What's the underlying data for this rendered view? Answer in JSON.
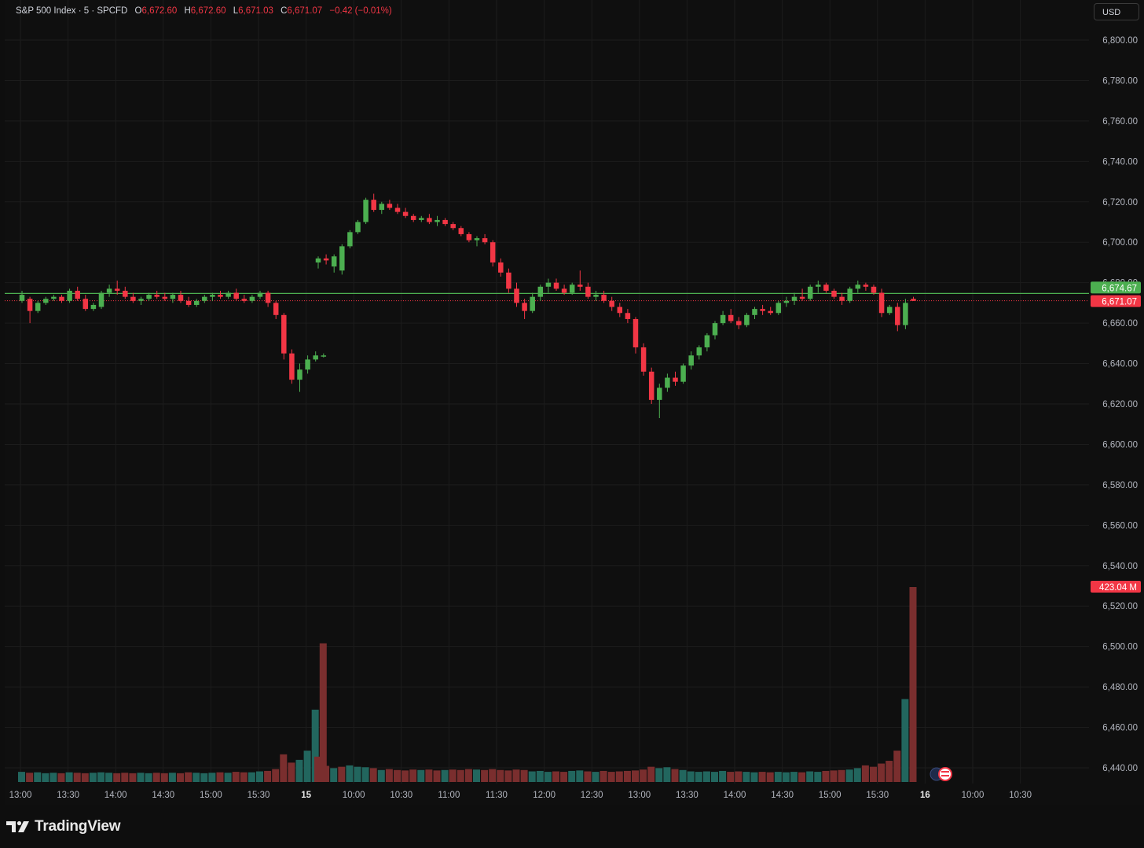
{
  "legend": {
    "symbol": "S&P 500 Index · 5 · SPCFD",
    "open_key": "O",
    "open": "6,672.60",
    "high_key": "H",
    "high": "6,672.60",
    "low_key": "L",
    "low": "6,671.03",
    "close_key": "C",
    "close": "6,671.07",
    "change": "−0.42 (−0.01%)"
  },
  "currency_button": "USD",
  "brand": "TradingView",
  "price_labels": {
    "current_green": "6,674.67",
    "last_red": "6,671.07",
    "volume": "423.04 M"
  },
  "colors": {
    "up": "#4caf50",
    "down": "#f23645",
    "vol_up": "#22665e",
    "vol_down": "#7a2e2e",
    "background": "#0f0f0f",
    "grid": "#1c1c1c"
  },
  "chart_data": {
    "type": "candlestick",
    "interval": "5",
    "y_axis": {
      "ticks": [
        "6,800.00",
        "6,780.00",
        "6,760.00",
        "6,740.00",
        "6,720.00",
        "6,700.00",
        "6,680.00",
        "6,660.00",
        "6,640.00",
        "6,620.00",
        "6,600.00",
        "6,580.00",
        "6,560.00",
        "6,540.00",
        "6,520.00",
        "6,500.00",
        "6,480.00",
        "6,460.00",
        "6,440.00"
      ],
      "range": [
        6436,
        6803
      ]
    },
    "x_axis": {
      "labels": [
        "13:00",
        "13:30",
        "14:00",
        "14:30",
        "15:00",
        "15:30",
        "15",
        "10:00",
        "10:30",
        "11:00",
        "11:30",
        "12:00",
        "12:30",
        "13:00",
        "13:30",
        "14:00",
        "14:30",
        "15:00",
        "15:30",
        "16",
        "10:00",
        "10:30"
      ],
      "bold": [
        "15",
        "16"
      ]
    },
    "reference_lines": [
      6674.67,
      6671.07
    ],
    "candles": [
      [
        6671,
        6676,
        6670,
        6674
      ],
      [
        6672,
        6673,
        6660,
        6666
      ],
      [
        6666,
        6671,
        6665,
        6670
      ],
      [
        6670,
        6673,
        6669,
        6672
      ],
      [
        6672,
        6674,
        6671,
        6673
      ],
      [
        6673,
        6674,
        6670,
        6671
      ],
      [
        6671,
        6677,
        6670,
        6676
      ],
      [
        6676,
        6678,
        6671,
        6672
      ],
      [
        6672,
        6674,
        6666,
        6667
      ],
      [
        6667,
        6670,
        6666,
        6669
      ],
      [
        6668,
        6676,
        6667,
        6675
      ],
      [
        6675,
        6679,
        6673,
        6677
      ],
      [
        6677,
        6681,
        6674,
        6676
      ],
      [
        6676,
        6678,
        6672,
        6673
      ],
      [
        6673,
        6675,
        6670,
        6671
      ],
      [
        6671,
        6673,
        6669,
        6672
      ],
      [
        6672,
        6675,
        6671,
        6674
      ],
      [
        6674,
        6676,
        6672,
        6673
      ],
      [
        6673,
        6675,
        6671,
        6672
      ],
      [
        6672,
        6675,
        6670,
        6674
      ],
      [
        6674,
        6676,
        6670,
        6671
      ],
      [
        6671,
        6673,
        6668,
        6669
      ],
      [
        6669,
        6672,
        6668,
        6671
      ],
      [
        6671,
        6674,
        6670,
        6673
      ],
      [
        6673,
        6675,
        6671,
        6674
      ],
      [
        6674,
        6676,
        6672,
        6673
      ],
      [
        6673,
        6676,
        6672,
        6675
      ],
      [
        6675,
        6677,
        6671,
        6672
      ],
      [
        6672,
        6674,
        6670,
        6671
      ],
      [
        6671,
        6674,
        6670,
        6673
      ],
      [
        6673,
        6676,
        6672,
        6675
      ],
      [
        6675,
        6676,
        6668,
        6670
      ],
      [
        6670,
        6671,
        6662,
        6664
      ],
      [
        6664,
        6665,
        6642,
        6645
      ],
      [
        6645,
        6647,
        6630,
        6632
      ],
      [
        6632,
        6640,
        6626,
        6637
      ],
      [
        6637,
        6644,
        6635,
        6642
      ],
      [
        6642,
        6646,
        6641,
        6644
      ],
      [
        6644,
        6645,
        6643,
        6644
      ],
      [
        6690,
        6693,
        6687,
        6692
      ],
      [
        6692,
        6694,
        6689,
        6691
      ],
      [
        6688,
        6694,
        6685,
        6693
      ],
      [
        6686,
        6699,
        6684,
        6698
      ],
      [
        6698,
        6706,
        6697,
        6705
      ],
      [
        6705,
        6711,
        6704,
        6710
      ],
      [
        6710,
        6722,
        6709,
        6721
      ],
      [
        6721,
        6724,
        6715,
        6716
      ],
      [
        6716,
        6720,
        6714,
        6719
      ],
      [
        6719,
        6721,
        6716,
        6717
      ],
      [
        6717,
        6719,
        6714,
        6715
      ],
      [
        6715,
        6717,
        6712,
        6713
      ],
      [
        6713,
        6714,
        6710,
        6711
      ],
      [
        6711,
        6713,
        6710,
        6712
      ],
      [
        6712,
        6714,
        6709,
        6710
      ],
      [
        6710,
        6713,
        6708,
        6711
      ],
      [
        6711,
        6712,
        6708,
        6709
      ],
      [
        6709,
        6710,
        6706,
        6707
      ],
      [
        6707,
        6708,
        6703,
        6704
      ],
      [
        6704,
        6705,
        6700,
        6701
      ],
      [
        6701,
        6703,
        6698,
        6702
      ],
      [
        6702,
        6704,
        6699,
        6700
      ],
      [
        6700,
        6701,
        6688,
        6690
      ],
      [
        6690,
        6692,
        6683,
        6685
      ],
      [
        6685,
        6687,
        6675,
        6677
      ],
      [
        6677,
        6680,
        6668,
        6670
      ],
      [
        6670,
        6672,
        6662,
        6666
      ],
      [
        6666,
        6675,
        6665,
        6673
      ],
      [
        6673,
        6679,
        6671,
        6678
      ],
      [
        6678,
        6682,
        6675,
        6680
      ],
      [
        6680,
        6682,
        6676,
        6677
      ],
      [
        6677,
        6679,
        6674,
        6675
      ],
      [
        6675,
        6680,
        6674,
        6679
      ],
      [
        6679,
        6686,
        6676,
        6678
      ],
      [
        6678,
        6680,
        6672,
        6673
      ],
      [
        6673,
        6676,
        6671,
        6674
      ],
      [
        6674,
        6676,
        6670,
        6671
      ],
      [
        6671,
        6673,
        6666,
        6668
      ],
      [
        6668,
        6670,
        6663,
        6665
      ],
      [
        6665,
        6667,
        6660,
        6662
      ],
      [
        6662,
        6663,
        6645,
        6648
      ],
      [
        6648,
        6650,
        6634,
        6636
      ],
      [
        6636,
        6638,
        6620,
        6622
      ],
      [
        6622,
        6630,
        6613,
        6628
      ],
      [
        6628,
        6635,
        6626,
        6633
      ],
      [
        6633,
        6636,
        6629,
        6631
      ],
      [
        6631,
        6640,
        6630,
        6639
      ],
      [
        6639,
        6646,
        6637,
        6644
      ],
      [
        6644,
        6649,
        6642,
        6648
      ],
      [
        6648,
        6655,
        6646,
        6654
      ],
      [
        6654,
        6661,
        6652,
        6660
      ],
      [
        6660,
        6666,
        6659,
        6664
      ],
      [
        6664,
        6667,
        6660,
        6661
      ],
      [
        6661,
        6663,
        6657,
        6659
      ],
      [
        6659,
        6665,
        6658,
        6664
      ],
      [
        6664,
        6668,
        6662,
        6667
      ],
      [
        6667,
        6669,
        6664,
        6666
      ],
      [
        6666,
        6668,
        6664,
        6665
      ],
      [
        6665,
        6671,
        6664,
        6670
      ],
      [
        6670,
        6673,
        6668,
        6671
      ],
      [
        6671,
        6675,
        6669,
        6673
      ],
      [
        6673,
        6677,
        6671,
        6672
      ],
      [
        6672,
        6679,
        6671,
        6678
      ],
      [
        6678,
        6681,
        6675,
        6679
      ],
      [
        6679,
        6680,
        6675,
        6676
      ],
      [
        6676,
        6677,
        6672,
        6673
      ],
      [
        6673,
        6675,
        6669,
        6671
      ],
      [
        6671,
        6678,
        6670,
        6677
      ],
      [
        6677,
        6681,
        6675,
        6679
      ],
      [
        6679,
        6680,
        6676,
        6678
      ],
      [
        6678,
        6679,
        6674,
        6675
      ],
      [
        6675,
        6677,
        6663,
        6665
      ],
      [
        6665,
        6669,
        6664,
        6668
      ],
      [
        6668,
        6670,
        6656,
        6659
      ],
      [
        6659,
        6672,
        6657,
        6670
      ],
      [
        6672,
        6673,
        6671,
        6671
      ]
    ],
    "volume": [
      {
        "v": 22,
        "up": true
      },
      {
        "v": 20,
        "up": false
      },
      {
        "v": 21,
        "up": true
      },
      {
        "v": 19,
        "up": true
      },
      {
        "v": 20,
        "up": true
      },
      {
        "v": 19,
        "up": false
      },
      {
        "v": 21,
        "up": true
      },
      {
        "v": 20,
        "up": false
      },
      {
        "v": 19,
        "up": false
      },
      {
        "v": 20,
        "up": true
      },
      {
        "v": 21,
        "up": true
      },
      {
        "v": 20,
        "up": true
      },
      {
        "v": 19,
        "up": false
      },
      {
        "v": 20,
        "up": false
      },
      {
        "v": 19,
        "up": false
      },
      {
        "v": 20,
        "up": true
      },
      {
        "v": 19,
        "up": true
      },
      {
        "v": 20,
        "up": false
      },
      {
        "v": 19,
        "up": false
      },
      {
        "v": 20,
        "up": true
      },
      {
        "v": 19,
        "up": false
      },
      {
        "v": 21,
        "up": false
      },
      {
        "v": 20,
        "up": true
      },
      {
        "v": 19,
        "up": true
      },
      {
        "v": 20,
        "up": true
      },
      {
        "v": 21,
        "up": false
      },
      {
        "v": 20,
        "up": true
      },
      {
        "v": 22,
        "up": false
      },
      {
        "v": 21,
        "up": false
      },
      {
        "v": 21,
        "up": true
      },
      {
        "v": 23,
        "up": true
      },
      {
        "v": 24,
        "up": false
      },
      {
        "v": 28,
        "up": false
      },
      {
        "v": 60,
        "up": false
      },
      {
        "v": 42,
        "up": false
      },
      {
        "v": 48,
        "up": true
      },
      {
        "v": 68,
        "up": true
      },
      {
        "v": 157,
        "up": true
      },
      {
        "v": 301,
        "up": false
      },
      {
        "v": 55,
        "up": false
      },
      {
        "v": 35,
        "up": false
      },
      {
        "v": 30,
        "up": true
      },
      {
        "v": 33,
        "up": false
      },
      {
        "v": 36,
        "up": true
      },
      {
        "v": 33,
        "up": true
      },
      {
        "v": 32,
        "up": true
      },
      {
        "v": 30,
        "up": false
      },
      {
        "v": 26,
        "up": true
      },
      {
        "v": 28,
        "up": false
      },
      {
        "v": 26,
        "up": false
      },
      {
        "v": 25,
        "up": false
      },
      {
        "v": 27,
        "up": false
      },
      {
        "v": 26,
        "up": true
      },
      {
        "v": 27,
        "up": false
      },
      {
        "v": 25,
        "up": false
      },
      {
        "v": 26,
        "up": true
      },
      {
        "v": 27,
        "up": false
      },
      {
        "v": 26,
        "up": false
      },
      {
        "v": 28,
        "up": false
      },
      {
        "v": 27,
        "up": true
      },
      {
        "v": 26,
        "up": false
      },
      {
        "v": 28,
        "up": false
      },
      {
        "v": 26,
        "up": false
      },
      {
        "v": 25,
        "up": false
      },
      {
        "v": 27,
        "up": false
      },
      {
        "v": 26,
        "up": false
      },
      {
        "v": 23,
        "up": true
      },
      {
        "v": 24,
        "up": true
      },
      {
        "v": 22,
        "up": true
      },
      {
        "v": 23,
        "up": false
      },
      {
        "v": 22,
        "up": false
      },
      {
        "v": 24,
        "up": true
      },
      {
        "v": 25,
        "up": true
      },
      {
        "v": 23,
        "up": false
      },
      {
        "v": 22,
        "up": true
      },
      {
        "v": 24,
        "up": false
      },
      {
        "v": 22,
        "up": false
      },
      {
        "v": 23,
        "up": false
      },
      {
        "v": 24,
        "up": false
      },
      {
        "v": 25,
        "up": false
      },
      {
        "v": 27,
        "up": false
      },
      {
        "v": 33,
        "up": false
      },
      {
        "v": 30,
        "up": true
      },
      {
        "v": 32,
        "up": true
      },
      {
        "v": 28,
        "up": false
      },
      {
        "v": 26,
        "up": true
      },
      {
        "v": 23,
        "up": true
      },
      {
        "v": 22,
        "up": true
      },
      {
        "v": 23,
        "up": true
      },
      {
        "v": 22,
        "up": true
      },
      {
        "v": 24,
        "up": true
      },
      {
        "v": 22,
        "up": false
      },
      {
        "v": 23,
        "up": false
      },
      {
        "v": 22,
        "up": true
      },
      {
        "v": 21,
        "up": true
      },
      {
        "v": 22,
        "up": false
      },
      {
        "v": 21,
        "up": false
      },
      {
        "v": 22,
        "up": true
      },
      {
        "v": 21,
        "up": true
      },
      {
        "v": 22,
        "up": true
      },
      {
        "v": 21,
        "up": false
      },
      {
        "v": 23,
        "up": true
      },
      {
        "v": 22,
        "up": true
      },
      {
        "v": 24,
        "up": false
      },
      {
        "v": 25,
        "up": false
      },
      {
        "v": 26,
        "up": false
      },
      {
        "v": 27,
        "up": true
      },
      {
        "v": 30,
        "up": true
      },
      {
        "v": 36,
        "up": false
      },
      {
        "v": 33,
        "up": false
      },
      {
        "v": 40,
        "up": false
      },
      {
        "v": 46,
        "up": false
      },
      {
        "v": 68,
        "up": false
      },
      {
        "v": 180,
        "up": true
      },
      {
        "v": 423.04,
        "up": false
      }
    ],
    "volume_range": [
      0,
      423.04
    ]
  }
}
